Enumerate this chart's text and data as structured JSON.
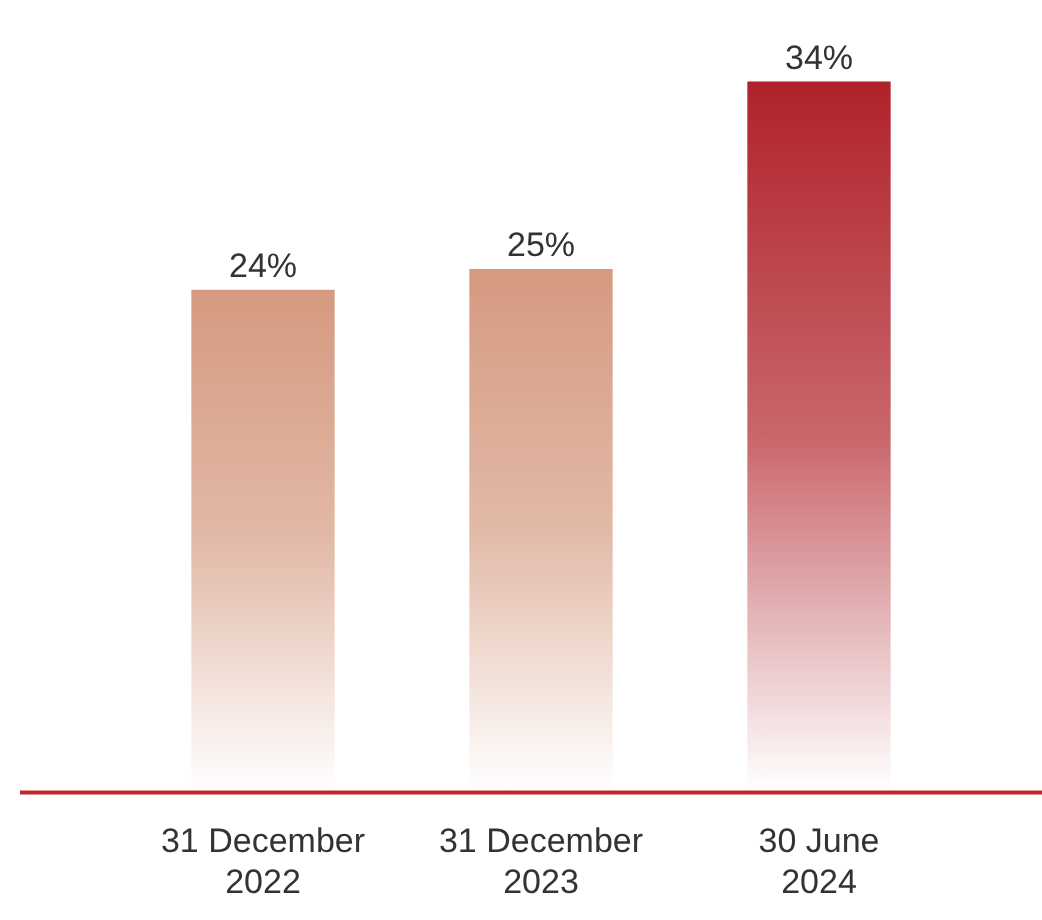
{
  "chart_data": {
    "type": "bar",
    "categories": [
      "31 December 2022",
      "31 December 2023",
      "30 June 2024"
    ],
    "values": [
      24,
      25,
      34
    ],
    "colors": [
      "#d59a80",
      "#d59a80",
      "#b0222a"
    ],
    "value_labels": [
      "24%",
      "25%",
      "34%"
    ]
  }
}
